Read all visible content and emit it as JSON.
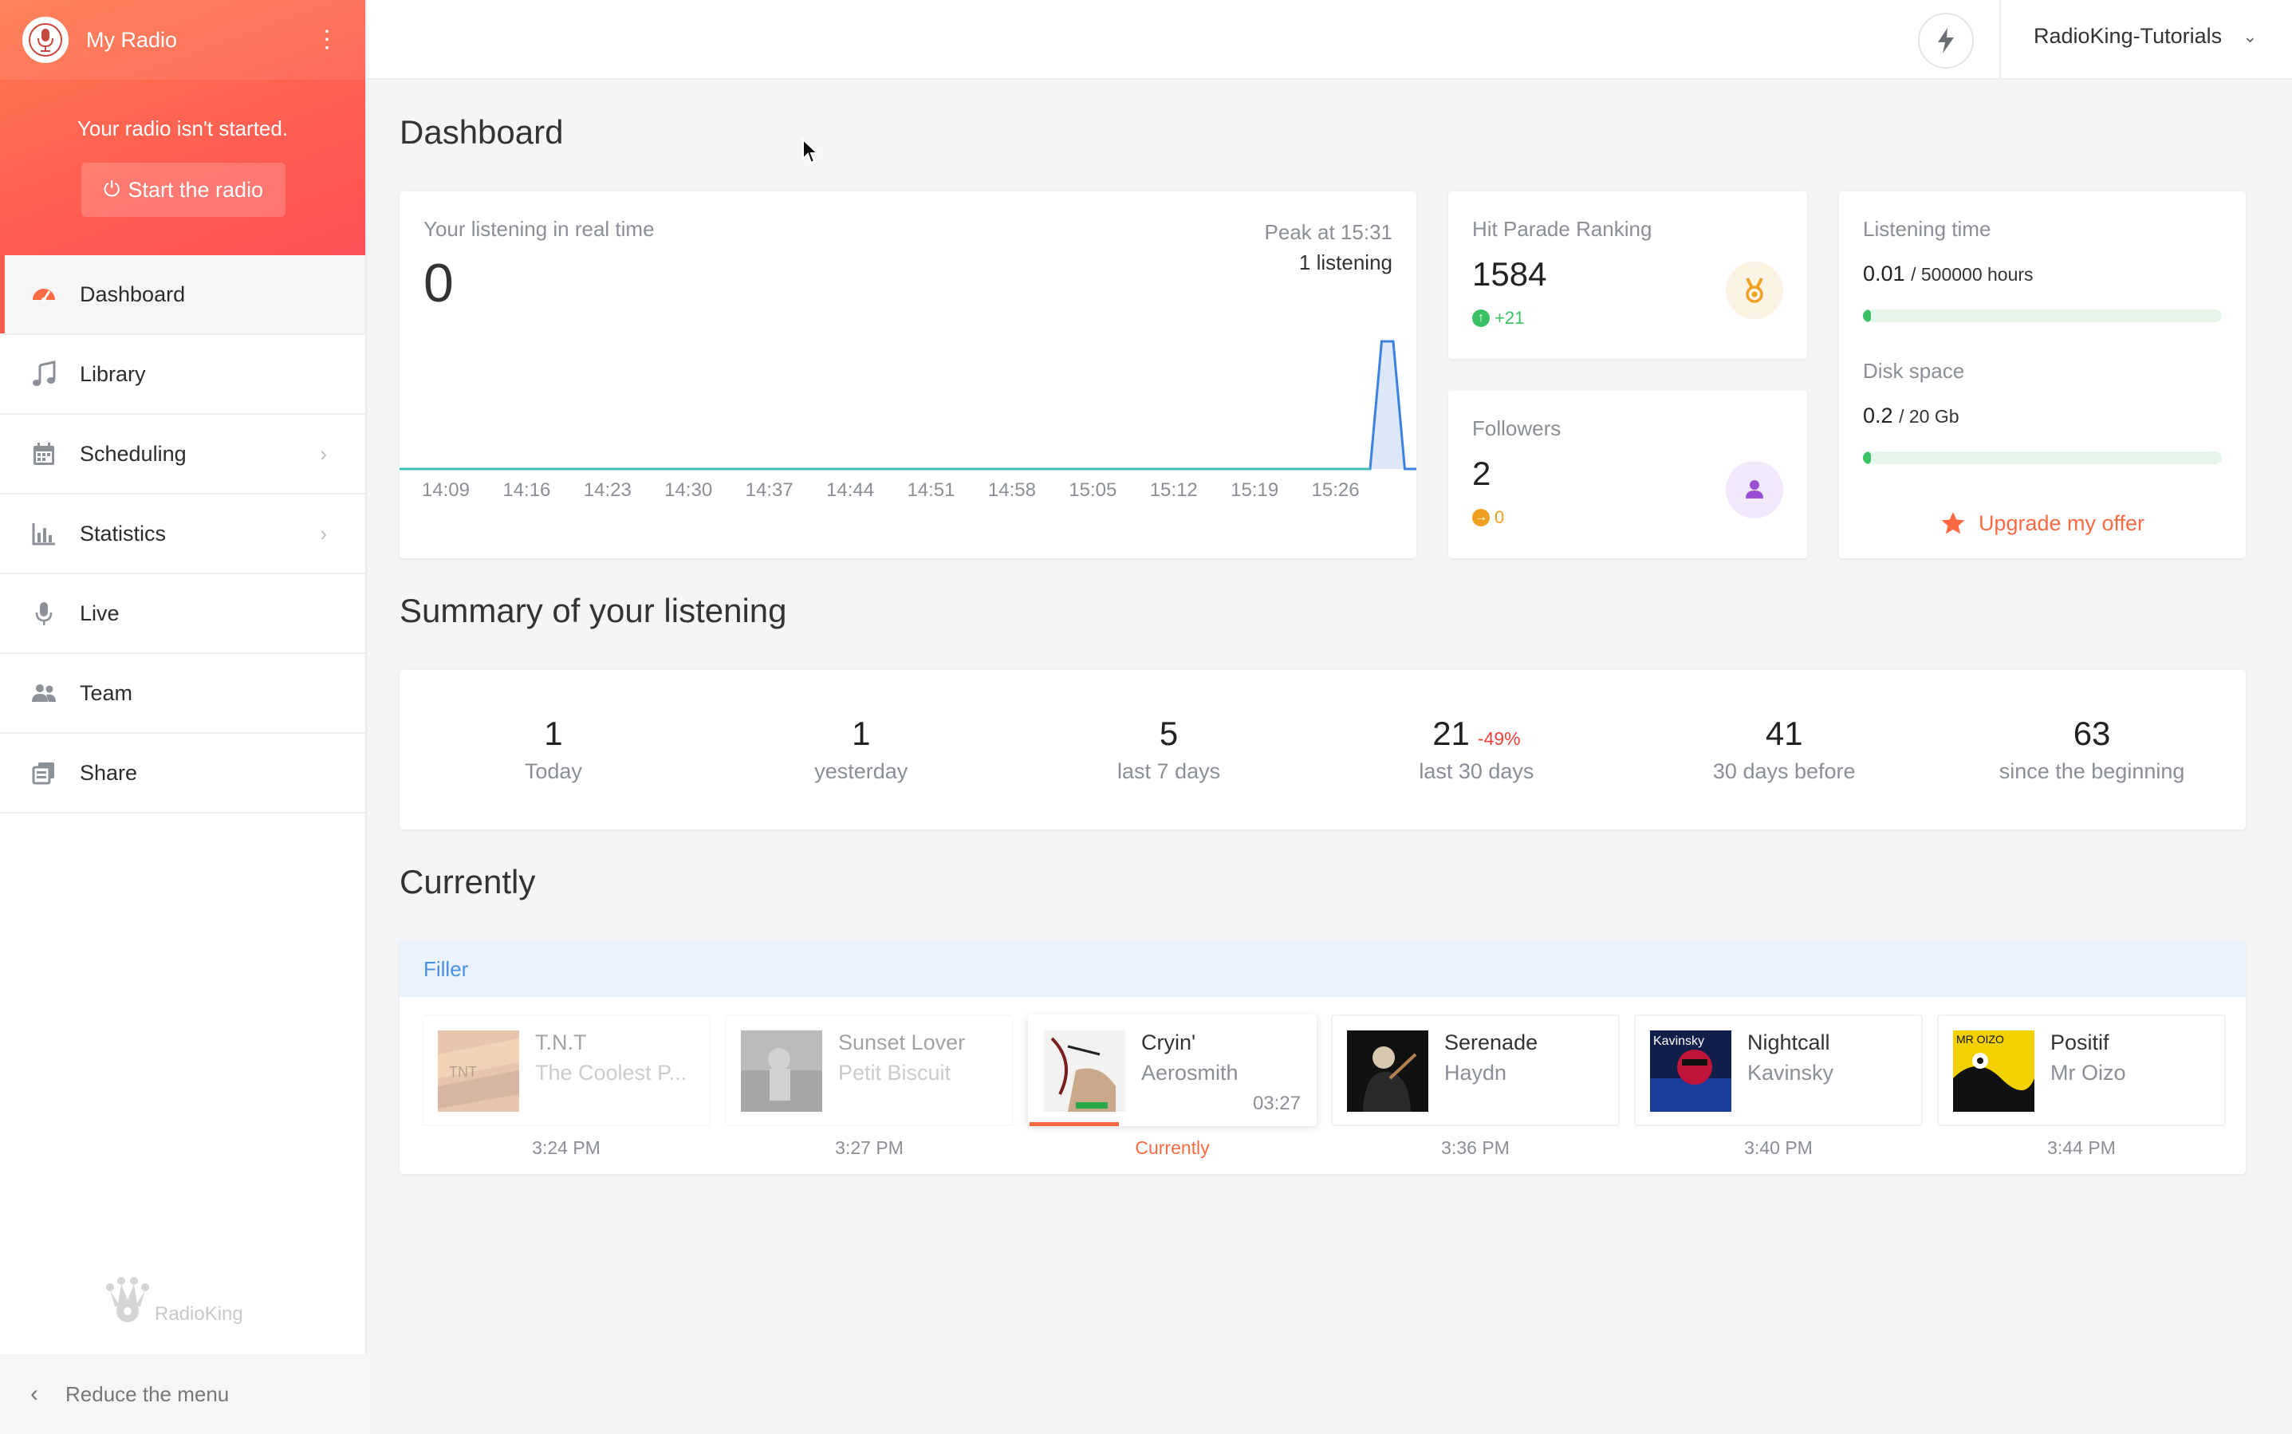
{
  "sidebar": {
    "radio_name": "My Radio",
    "status": "Your radio isn't started.",
    "start_label": "Start the radio",
    "items": [
      {
        "label": "Dashboard",
        "icon": "gauge-icon",
        "active": true,
        "has_children": false
      },
      {
        "label": "Library",
        "icon": "music-note-icon",
        "active": false,
        "has_children": false
      },
      {
        "label": "Scheduling",
        "icon": "calendar-icon",
        "active": false,
        "has_children": true
      },
      {
        "label": "Statistics",
        "icon": "bar-chart-icon",
        "active": false,
        "has_children": true
      },
      {
        "label": "Live",
        "icon": "microphone-icon",
        "active": false,
        "has_children": false
      },
      {
        "label": "Team",
        "icon": "users-icon",
        "active": false,
        "has_children": false
      },
      {
        "label": "Share",
        "icon": "share-icon",
        "active": false,
        "has_children": false
      }
    ],
    "logo_text": "RadioKing",
    "reduce_label": "Reduce the menu"
  },
  "topbar": {
    "account_name": "RadioKing-Tutorials"
  },
  "dashboard": {
    "title": "Dashboard",
    "realtime": {
      "label": "Your listening in real time",
      "value": "0",
      "peak_label": "Peak at 15:31",
      "peak_count": "1 listening"
    },
    "hit_parade": {
      "label": "Hit Parade Ranking",
      "value": "1584",
      "delta": "+21"
    },
    "followers": {
      "label": "Followers",
      "value": "2",
      "delta": "0"
    },
    "quota": {
      "listening_label": "Listening time",
      "listening_used": "0.01",
      "listening_total": "/ 500000 hours",
      "listening_fraction": 2e-05,
      "disk_label": "Disk space",
      "disk_used": "0.2",
      "disk_total": "/ 20 Gb",
      "disk_fraction": 0.01,
      "upgrade_label": "Upgrade my offer"
    }
  },
  "summary": {
    "title": "Summary of your listening",
    "stats": [
      {
        "value": "1",
        "label": "Today",
        "delta": ""
      },
      {
        "value": "1",
        "label": "yesterday",
        "delta": ""
      },
      {
        "value": "5",
        "label": "last 7 days",
        "delta": ""
      },
      {
        "value": "21",
        "label": "last 30 days",
        "delta": "-49%"
      },
      {
        "value": "41",
        "label": "30 days before",
        "delta": ""
      },
      {
        "value": "63",
        "label": "since the beginning",
        "delta": ""
      }
    ]
  },
  "currently": {
    "title": "Currently",
    "playlist": "Filler",
    "tracks": [
      {
        "title": "T.N.T",
        "artist": "The Coolest P...",
        "time": "3:24 PM",
        "state": "past",
        "duration": ""
      },
      {
        "title": "Sunset Lover",
        "artist": "Petit Biscuit",
        "time": "3:27 PM",
        "state": "past",
        "duration": ""
      },
      {
        "title": "Cryin'",
        "artist": "Aerosmith",
        "time": "Currently",
        "state": "now",
        "duration": "03:27"
      },
      {
        "title": "Serenade",
        "artist": "Haydn",
        "time": "3:36 PM",
        "state": "next",
        "duration": ""
      },
      {
        "title": "Nightcall",
        "artist": "Kavinsky",
        "time": "3:40 PM",
        "state": "next",
        "duration": ""
      },
      {
        "title": "Positif",
        "artist": "Mr Oizo",
        "time": "3:44 PM",
        "state": "next",
        "duration": ""
      }
    ]
  },
  "colors": {
    "accent": "#fc6a44",
    "chart_line": "#3b82e0",
    "positive": "#3ac163",
    "negative": "#f0403a"
  },
  "chart_data": {
    "type": "area",
    "title": "",
    "xlabel": "",
    "ylabel": "",
    "categories": [
      "14:09",
      "14:16",
      "14:23",
      "14:30",
      "14:37",
      "14:44",
      "14:51",
      "14:58",
      "15:05",
      "15:12",
      "15:19",
      "15:26"
    ],
    "series": [
      {
        "x": [
          "14:05",
          "15:29",
          "15:30",
          "15:31",
          "15:32",
          "15:33"
        ],
        "values": [
          0,
          0,
          1,
          1,
          0,
          0
        ]
      }
    ],
    "ylim": [
      0,
      1
    ],
    "grid": false,
    "legend": "none"
  }
}
